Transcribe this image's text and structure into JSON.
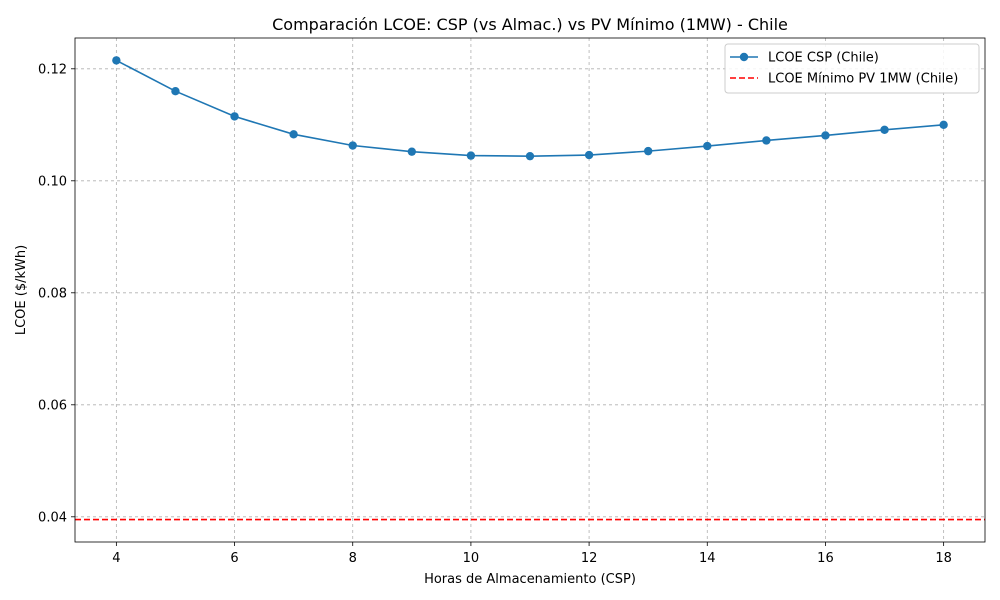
{
  "chart_data": {
    "type": "line",
    "title": "Comparación LCOE: CSP (vs Almac.) vs PV Mínimo (1MW) - Chile",
    "xlabel": "Horas de Almacenamiento (CSP)",
    "ylabel": "LCOE ($/kWh)",
    "xlim": [
      3.3,
      18.7
    ],
    "ylim": [
      0.0355,
      0.1255
    ],
    "xticks": [
      4,
      6,
      8,
      10,
      12,
      14,
      16,
      18
    ],
    "yticks": [
      0.04,
      0.06,
      0.08,
      0.1,
      0.12
    ],
    "ytick_labels": [
      "0.04",
      "0.06",
      "0.08",
      "0.10",
      "0.12"
    ],
    "grid": true,
    "legend_position": "top-right",
    "series": [
      {
        "name": "LCOE CSP (Chile)",
        "style": "line-with-markers",
        "color": "#1f77b4",
        "x": [
          4,
          5,
          6,
          7,
          8,
          9,
          10,
          11,
          12,
          13,
          14,
          15,
          16,
          17,
          18
        ],
        "y": [
          0.1215,
          0.116,
          0.1115,
          0.1083,
          0.1063,
          0.1052,
          0.1045,
          0.1044,
          0.1046,
          0.1053,
          0.1062,
          0.1072,
          0.1081,
          0.1091,
          0.11
        ]
      },
      {
        "name": "LCOE Mínimo PV 1MW (Chile)",
        "style": "dashed-horizontal",
        "color": "#ff0000",
        "y": 0.0395
      }
    ]
  }
}
